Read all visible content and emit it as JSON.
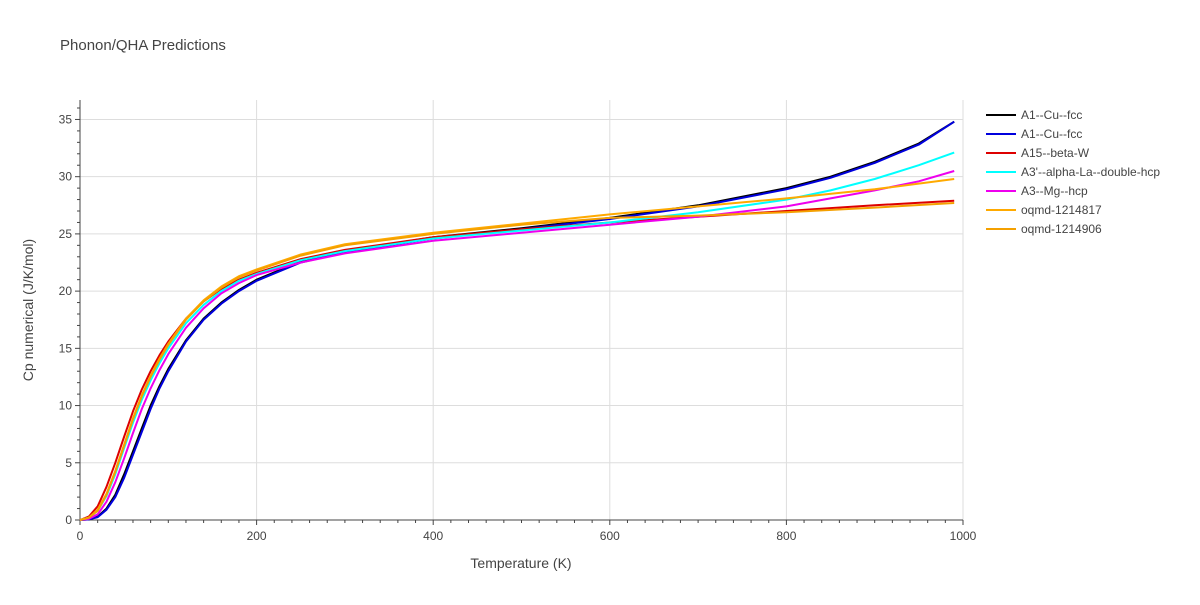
{
  "chart_data": {
    "type": "line",
    "title": "Phonon/QHA Predictions",
    "xlabel": "Temperature (K)",
    "ylabel": "Cp numerical (J/K/mol)",
    "xlim": [
      0,
      1000
    ],
    "ylim": [
      0,
      36.7
    ],
    "xticks": [
      0,
      200,
      400,
      600,
      800,
      1000
    ],
    "yticks": [
      0,
      5,
      10,
      15,
      20,
      25,
      30,
      35
    ],
    "grid": true,
    "legend_position": "right",
    "series": [
      {
        "name": "A1--Cu--fcc",
        "color": "#000000",
        "x": [
          0,
          10,
          20,
          30,
          40,
          50,
          60,
          70,
          80,
          90,
          100,
          120,
          140,
          160,
          180,
          200,
          250,
          300,
          400,
          500,
          600,
          700,
          800,
          850,
          900,
          950,
          990
        ],
        "y": [
          0,
          0.05,
          0.3,
          1.0,
          2.2,
          4.0,
          6.0,
          8.0,
          10.0,
          11.7,
          13.2,
          15.7,
          17.6,
          19.0,
          20.1,
          21.0,
          22.6,
          23.5,
          24.7,
          25.5,
          26.4,
          27.5,
          29.0,
          30.0,
          31.3,
          32.9,
          34.8
        ]
      },
      {
        "name": "A1--Cu--fcc",
        "color": "#0000dd",
        "x": [
          0,
          10,
          20,
          30,
          40,
          50,
          60,
          70,
          80,
          90,
          100,
          120,
          140,
          160,
          180,
          200,
          250,
          300,
          400,
          500,
          600,
          700,
          800,
          850,
          900,
          950,
          990
        ],
        "y": [
          0,
          0.05,
          0.25,
          0.9,
          2.0,
          3.7,
          5.7,
          7.7,
          9.7,
          11.5,
          13.0,
          15.6,
          17.5,
          18.9,
          20.0,
          20.9,
          22.5,
          23.4,
          24.6,
          25.4,
          26.3,
          27.4,
          28.9,
          29.9,
          31.2,
          32.8,
          34.8
        ]
      },
      {
        "name": "A15--beta-W",
        "color": "#dd0000",
        "x": [
          0,
          10,
          20,
          30,
          40,
          50,
          60,
          70,
          80,
          90,
          100,
          120,
          140,
          160,
          180,
          200,
          250,
          300,
          400,
          500,
          600,
          700,
          800,
          900,
          990
        ],
        "y": [
          0,
          0.3,
          1.2,
          2.9,
          5.0,
          7.3,
          9.5,
          11.4,
          13.0,
          14.4,
          15.6,
          17.6,
          19.1,
          20.2,
          21.0,
          21.6,
          22.8,
          23.6,
          24.7,
          25.4,
          26.0,
          26.5,
          27.0,
          27.5,
          27.9
        ]
      },
      {
        "name": "A3'--alpha-La--double-hcp",
        "color": "#00ffff",
        "x": [
          0,
          10,
          20,
          30,
          40,
          50,
          60,
          70,
          80,
          90,
          100,
          120,
          140,
          160,
          180,
          200,
          250,
          300,
          400,
          500,
          600,
          700,
          800,
          850,
          900,
          950,
          990
        ],
        "y": [
          0,
          0.2,
          0.8,
          2.1,
          4.0,
          6.3,
          8.5,
          10.5,
          12.2,
          13.7,
          15.0,
          17.2,
          18.8,
          20.0,
          20.9,
          21.5,
          22.7,
          23.5,
          24.6,
          25.3,
          26.0,
          26.9,
          28.0,
          28.8,
          29.8,
          31.0,
          32.1
        ]
      },
      {
        "name": "A3--Mg--hcp",
        "color": "#ee00ee",
        "x": [
          0,
          10,
          20,
          30,
          40,
          50,
          60,
          70,
          80,
          90,
          100,
          120,
          140,
          160,
          180,
          200,
          250,
          300,
          400,
          500,
          600,
          700,
          800,
          850,
          900,
          950,
          990
        ],
        "y": [
          0,
          0.1,
          0.5,
          1.6,
          3.3,
          5.4,
          7.6,
          9.7,
          11.5,
          13.1,
          14.5,
          16.8,
          18.5,
          19.8,
          20.7,
          21.4,
          22.5,
          23.3,
          24.4,
          25.1,
          25.8,
          26.5,
          27.4,
          28.1,
          28.8,
          29.6,
          30.5
        ]
      },
      {
        "name": "oqmd-1214817",
        "color": "#ffaa00",
        "x": [
          0,
          10,
          20,
          30,
          40,
          50,
          60,
          70,
          80,
          90,
          100,
          120,
          140,
          160,
          180,
          200,
          250,
          300,
          400,
          500,
          600,
          700,
          800,
          900,
          990
        ],
        "y": [
          0,
          0.2,
          0.9,
          2.3,
          4.3,
          6.6,
          8.9,
          10.9,
          12.6,
          14.1,
          15.4,
          17.6,
          19.2,
          20.4,
          21.3,
          21.9,
          23.2,
          24.1,
          25.1,
          25.9,
          26.7,
          27.4,
          28.1,
          28.9,
          29.8
        ]
      },
      {
        "name": "oqmd-1214906",
        "color": "#f4a000",
        "x": [
          0,
          10,
          20,
          30,
          40,
          50,
          60,
          70,
          80,
          90,
          100,
          120,
          140,
          160,
          180,
          200,
          250,
          300,
          400,
          500,
          600,
          700,
          800,
          900,
          990
        ],
        "y": [
          0,
          0.2,
          0.8,
          2.2,
          4.2,
          6.5,
          8.8,
          10.8,
          12.5,
          14.0,
          15.3,
          17.5,
          19.1,
          20.3,
          21.2,
          21.8,
          23.1,
          24.0,
          25.0,
          25.8,
          26.4,
          26.6,
          26.9,
          27.3,
          27.7
        ]
      }
    ]
  }
}
